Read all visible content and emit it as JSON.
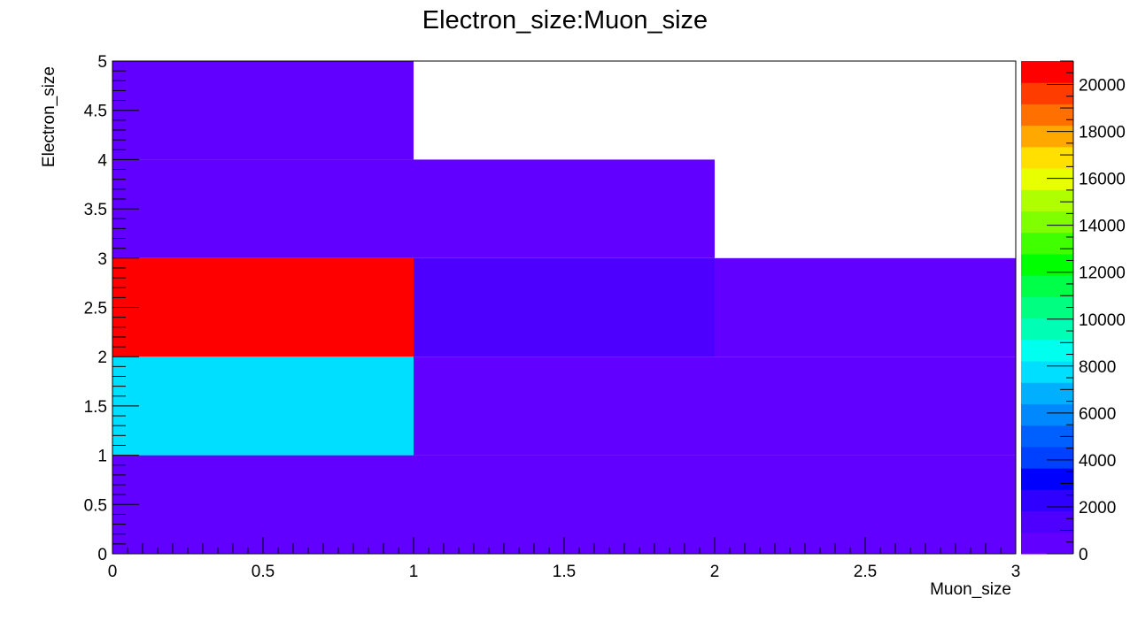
{
  "chart_data": {
    "type": "heatmap",
    "title": "Electron_size:Muon_size",
    "xlabel": "Muon_size",
    "ylabel": "Electron_size",
    "xlim": [
      0,
      3
    ],
    "ylim": [
      0,
      5
    ],
    "x_ticks": [
      0,
      0.5,
      1,
      1.5,
      2,
      2.5,
      3
    ],
    "x_tick_labels": [
      "0",
      "0.5",
      "1",
      "1.5",
      "2",
      "2.5",
      "3"
    ],
    "y_ticks": [
      0,
      0.5,
      1,
      1.5,
      2,
      2.5,
      3,
      3.5,
      4,
      4.5,
      5
    ],
    "y_tick_labels": [
      "0",
      "0.5",
      "1",
      "1.5",
      "2",
      "2.5",
      "3",
      "3.5",
      "4",
      "4.5",
      "5"
    ],
    "grid": false,
    "legend": "colorbar-right",
    "zlim": [
      0,
      21000
    ],
    "colorbar_ticks": [
      0,
      2000,
      4000,
      6000,
      8000,
      10000,
      12000,
      14000,
      16000,
      18000,
      20000
    ],
    "colorbar_tick_labels": [
      "0",
      "2000",
      "4000",
      "6000",
      "8000",
      "10000",
      "12000",
      "14000",
      "16000",
      "18000",
      "20000"
    ],
    "palette": [
      "#6200ff",
      "#4e00ff",
      "#2f00ff",
      "#0000ff",
      "#0040ff",
      "#0060ff",
      "#0088ff",
      "#00b0ff",
      "#00dfff",
      "#00ffef",
      "#00ffb5",
      "#00ff80",
      "#00ff48",
      "#00ff00",
      "#40ff00",
      "#80ff00",
      "#b0ff00",
      "#e8ff00",
      "#ffe000",
      "#ffa800",
      "#ff7000",
      "#ff3c00",
      "#ff0000"
    ],
    "cells": [
      {
        "x0": 0,
        "x1": 1,
        "y0": 0,
        "y1": 1,
        "value": 300
      },
      {
        "x0": 0,
        "x1": 1,
        "y0": 1,
        "y1": 2,
        "value": 7500
      },
      {
        "x0": 0,
        "x1": 1,
        "y0": 2,
        "y1": 3,
        "value": 21000
      },
      {
        "x0": 0,
        "x1": 1,
        "y0": 3,
        "y1": 4,
        "value": 300
      },
      {
        "x0": 0,
        "x1": 1,
        "y0": 4,
        "y1": 5,
        "value": 200
      },
      {
        "x0": 1,
        "x1": 2,
        "y0": 0,
        "y1": 1,
        "value": 300
      },
      {
        "x0": 1,
        "x1": 2,
        "y0": 1,
        "y1": 2,
        "value": 400
      },
      {
        "x0": 1,
        "x1": 2,
        "y0": 2,
        "y1": 3,
        "value": 1500
      },
      {
        "x0": 1,
        "x1": 2,
        "y0": 3,
        "y1": 4,
        "value": 200
      },
      {
        "x0": 2,
        "x1": 3,
        "y0": 0,
        "y1": 1,
        "value": 200
      },
      {
        "x0": 2,
        "x1": 3,
        "y0": 1,
        "y1": 2,
        "value": 200
      },
      {
        "x0": 2,
        "x1": 3,
        "y0": 2,
        "y1": 3,
        "value": 200
      }
    ]
  }
}
